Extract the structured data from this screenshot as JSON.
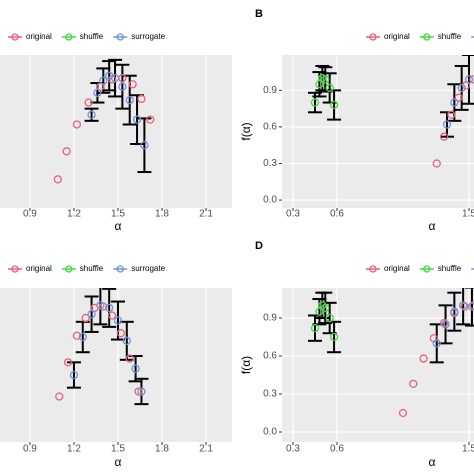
{
  "chart_data": [
    {
      "type": "scatter",
      "xlabel": "α",
      "xlim": [
        0.696,
        2.277
      ],
      "ylim": [
        -0.065,
        1.19
      ],
      "xticks": [
        0.9,
        1.2,
        1.5,
        1.8,
        2.1
      ],
      "series": [
        {
          "name": "original",
          "color": "#ee5f77",
          "x": [
            1.09,
            1.15,
            1.22,
            1.3,
            1.38,
            1.46,
            1.53,
            1.6,
            1.66,
            1.72
          ],
          "values": [
            0.17,
            0.4,
            0.62,
            0.8,
            0.93,
            0.99,
            1.0,
            0.95,
            0.83,
            0.66
          ]
        },
        {
          "name": "shuffle",
          "color": "#3ddc3d",
          "x": [],
          "values": []
        },
        {
          "name": "surrogate",
          "color": "#6e93d8",
          "x": [
            1.32,
            1.36,
            1.4,
            1.44,
            1.48,
            1.53,
            1.58,
            1.63,
            1.68
          ],
          "values": [
            0.7,
            0.88,
            0.98,
            1.02,
            1.0,
            0.93,
            0.82,
            0.66,
            0.45
          ],
          "errors": [
            0.05,
            0.08,
            0.1,
            0.12,
            0.15,
            0.18,
            0.2,
            0.2,
            0.22
          ]
        }
      ]
    },
    {
      "type": "scatter",
      "panel_label": "B",
      "xlabel": "α",
      "ylabel": "f(α)",
      "xlim": [
        0.225,
        1.534
      ],
      "ylim": [
        -0.065,
        1.19
      ],
      "xticks": [
        0.3,
        0.6,
        1.5
      ],
      "yticks": [
        {
          "value": 0,
          "label": "0.0"
        },
        0.3,
        0.6,
        0.9
      ],
      "series": [
        {
          "name": "original",
          "color": "#ee5f77",
          "x": [
            1.28,
            1.33,
            1.38,
            1.43,
            1.48,
            1.53
          ],
          "values": [
            0.3,
            0.52,
            0.7,
            0.84,
            0.94,
            0.99
          ]
        },
        {
          "name": "shuffle",
          "color": "#3ddc3d",
          "x": [
            0.45,
            0.48,
            0.5,
            0.52,
            0.55,
            0.58
          ],
          "values": [
            0.8,
            0.95,
            1.0,
            0.99,
            0.92,
            0.78
          ],
          "errors": [
            0.08,
            0.1,
            0.1,
            0.1,
            0.12,
            0.12
          ]
        },
        {
          "name": "surrogate",
          "color": "#6e93d8",
          "x": [
            1.35,
            1.4,
            1.45,
            1.5
          ],
          "values": [
            0.62,
            0.8,
            0.92,
            0.99
          ],
          "errors": [
            0.1,
            0.15,
            0.18,
            0.2
          ]
        }
      ]
    },
    {
      "type": "scatter",
      "xlabel": "α",
      "xlim": [
        0.696,
        2.277
      ],
      "ylim": [
        -0.079,
        1.137
      ],
      "xticks": [
        0.9,
        1.2,
        1.5,
        1.8,
        2.1
      ],
      "series": [
        {
          "name": "original",
          "color": "#ee5f77",
          "x": [
            1.1,
            1.16,
            1.22,
            1.28,
            1.34,
            1.4,
            1.46,
            1.52,
            1.58,
            1.64
          ],
          "values": [
            0.28,
            0.55,
            0.76,
            0.9,
            0.98,
            0.99,
            0.92,
            0.78,
            0.58,
            0.32
          ]
        },
        {
          "name": "shuffle",
          "color": "#3ddc3d",
          "x": [],
          "values": []
        },
        {
          "name": "surrogate",
          "color": "#6e93d8",
          "x": [
            1.2,
            1.26,
            1.32,
            1.38,
            1.44,
            1.5,
            1.56,
            1.62,
            1.66
          ],
          "values": [
            0.45,
            0.75,
            0.93,
            1.0,
            0.98,
            0.88,
            0.72,
            0.5,
            0.32
          ],
          "errors": [
            0.1,
            0.12,
            0.14,
            0.15,
            0.15,
            0.15,
            0.15,
            0.1,
            0.1
          ]
        }
      ]
    },
    {
      "type": "scatter",
      "panel_label": "D",
      "xlabel": "α",
      "ylabel": "f(α)",
      "xlim": [
        0.225,
        1.534
      ],
      "ylim": [
        -0.079,
        1.137
      ],
      "xticks": [
        0.3,
        0.6,
        1.5
      ],
      "yticks": [
        {
          "value": 0,
          "label": "0.0"
        },
        0.3,
        0.6,
        0.9
      ],
      "series": [
        {
          "name": "original",
          "color": "#ee5f77",
          "x": [
            1.05,
            1.12,
            1.19,
            1.26,
            1.33,
            1.4,
            1.47,
            1.53
          ],
          "values": [
            0.15,
            0.38,
            0.58,
            0.74,
            0.86,
            0.94,
            0.99,
            1.0
          ]
        },
        {
          "name": "shuffle",
          "color": "#3ddc3d",
          "x": [
            0.45,
            0.48,
            0.5,
            0.52,
            0.55,
            0.58
          ],
          "values": [
            0.82,
            0.95,
            1.0,
            0.98,
            0.9,
            0.75
          ],
          "errors": [
            0.1,
            0.1,
            0.1,
            0.12,
            0.12,
            0.12
          ]
        },
        {
          "name": "surrogate",
          "color": "#6e93d8",
          "x": [
            1.28,
            1.34,
            1.4,
            1.46,
            1.52
          ],
          "values": [
            0.7,
            0.85,
            0.95,
            1.0,
            0.99
          ],
          "errors": [
            0.15,
            0.15,
            0.15,
            0.15,
            0.15
          ]
        }
      ]
    }
  ]
}
